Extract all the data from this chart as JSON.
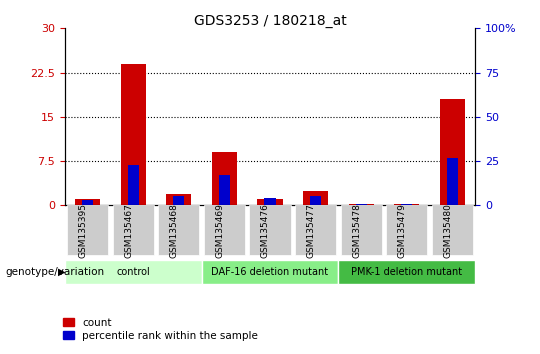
{
  "title": "GDS3253 / 180218_at",
  "samples": [
    "GSM135395",
    "GSM135467",
    "GSM135468",
    "GSM135469",
    "GSM135476",
    "GSM135477",
    "GSM135478",
    "GSM135479",
    "GSM135480"
  ],
  "count_values": [
    1.0,
    24.0,
    2.0,
    9.0,
    1.0,
    2.5,
    0.15,
    0.15,
    18.0
  ],
  "percentile_values": [
    3.0,
    23.0,
    5.0,
    17.0,
    4.0,
    5.0,
    1.0,
    1.0,
    27.0
  ],
  "left_ylim": [
    0,
    30
  ],
  "right_ylim": [
    0,
    100
  ],
  "left_yticks": [
    0,
    7.5,
    15,
    22.5,
    30
  ],
  "right_yticks": [
    0,
    25,
    50,
    75,
    100
  ],
  "left_ytick_labels": [
    "0",
    "7.5",
    "15",
    "22.5",
    "30"
  ],
  "right_ytick_labels": [
    "0",
    "25",
    "50",
    "75",
    "100%"
  ],
  "bar_color_red": "#cc0000",
  "bar_color_blue": "#0000cc",
  "bar_width": 0.55,
  "groups": [
    {
      "label": "control",
      "start": 0,
      "end": 2,
      "color": "#ccffcc"
    },
    {
      "label": "DAF-16 deletion mutant",
      "start": 3,
      "end": 5,
      "color": "#88ee88"
    },
    {
      "label": "PMK-1 deletion mutant",
      "start": 6,
      "end": 8,
      "color": "#44bb44"
    }
  ],
  "xlabel_genotype": "genotype/variation",
  "legend_count": "count",
  "legend_percentile": "percentile rank within the sample",
  "tick_color_left": "#cc0000",
  "tick_color_right": "#0000cc",
  "bg_color_xticklabel": "#cccccc"
}
